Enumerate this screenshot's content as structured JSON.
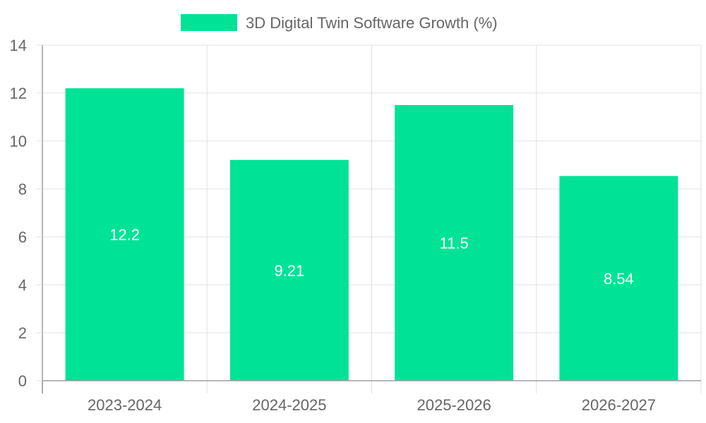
{
  "chart_data": {
    "type": "bar",
    "categories": [
      "2023-2024",
      "2024-2025",
      "2025-2026",
      "2026-2027"
    ],
    "series": [
      {
        "name": "3D Digital Twin Software Growth (%)",
        "values": [
          12.2,
          9.21,
          11.5,
          8.54
        ],
        "labels": [
          "12.2",
          "9.21",
          "11.5",
          "8.54"
        ]
      }
    ],
    "title": "",
    "xlabel": "",
    "ylabel": "",
    "ylim": [
      0,
      14
    ],
    "yticks": [
      "0",
      "2",
      "4",
      "6",
      "8",
      "10",
      "12",
      "14"
    ],
    "grid": true,
    "legend_position": "top-center",
    "colors": {
      "bar": "#00e396",
      "grid": "#e0e0e0",
      "axis": "#9e9e9e",
      "tick_text": "#666666",
      "data_label": "#ffffff"
    }
  }
}
